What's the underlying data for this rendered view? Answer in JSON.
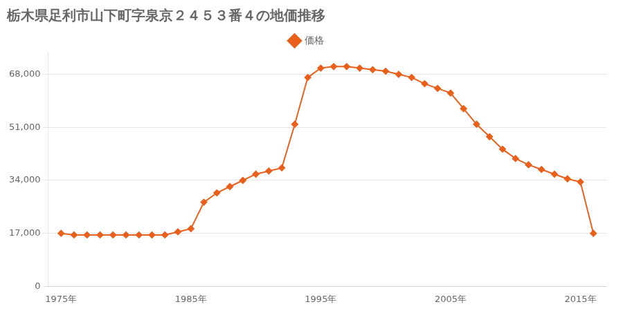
{
  "chart_data": {
    "type": "line",
    "title": "栃木県足利市山下町字泉京２４５３番４の地価推移",
    "x": [
      1975,
      1976,
      1977,
      1978,
      1979,
      1980,
      1981,
      1982,
      1983,
      1984,
      1985,
      1986,
      1987,
      1988,
      1989,
      1990,
      1991,
      1992,
      1993,
      1994,
      1995,
      1996,
      1997,
      1998,
      1999,
      2000,
      2001,
      2002,
      2003,
      2004,
      2005,
      2006,
      2007,
      2008,
      2009,
      2010,
      2011,
      2012,
      2013,
      2014,
      2015,
      2016
    ],
    "series": [
      {
        "name": "価格",
        "color": "#e8601c",
        "marker": "diamond",
        "values": [
          17000,
          16500,
          16500,
          16500,
          16500,
          16500,
          16500,
          16500,
          16500,
          17500,
          18500,
          27000,
          30000,
          32000,
          34000,
          36000,
          37000,
          38000,
          52000,
          67000,
          70000,
          70500,
          70500,
          70000,
          69500,
          69000,
          68000,
          67000,
          65000,
          63500,
          62000,
          57000,
          52000,
          48000,
          44000,
          41000,
          39000,
          37500,
          36000,
          34500,
          33500,
          17000
        ]
      }
    ],
    "xlim": [
      1974,
      2017
    ],
    "xticks": [
      {
        "value": 1975,
        "label": "1975年"
      },
      {
        "value": 1985,
        "label": "1985年"
      },
      {
        "value": 1995,
        "label": "1995年"
      },
      {
        "value": 2005,
        "label": "2005年"
      },
      {
        "value": 2015,
        "label": "2015年"
      }
    ],
    "ylim": [
      0,
      75000
    ],
    "yticks": [
      0,
      {
        "value": 17000,
        "label": "17,000"
      },
      {
        "value": 34000,
        "label": "34,000"
      },
      {
        "value": 51000,
        "label": "51,000"
      },
      {
        "value": 68000,
        "label": "68,000"
      }
    ],
    "grid": "y",
    "legend": "top"
  }
}
